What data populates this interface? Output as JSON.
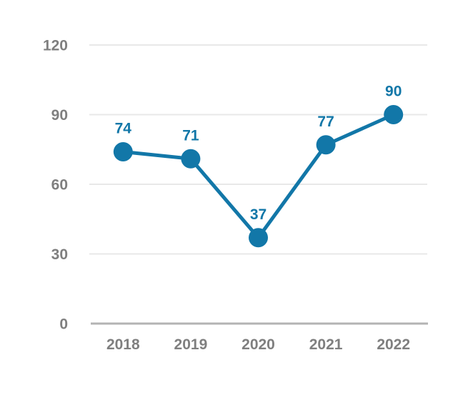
{
  "chart_data": {
    "type": "line",
    "title": "",
    "xlabel": "",
    "ylabel": "",
    "categories": [
      "2018",
      "2019",
      "2020",
      "2021",
      "2022"
    ],
    "values": [
      74,
      71,
      37,
      77,
      90
    ],
    "data_labels": [
      "74",
      "71",
      "37",
      "77",
      "90"
    ],
    "ylim": [
      0,
      120
    ],
    "yticks": [
      0,
      30,
      60,
      90,
      120
    ],
    "grid": true,
    "legend": false,
    "marker": "circle",
    "colors": {
      "series": "#1277a8",
      "tick_label": "#7f7f7f",
      "gridline": "#e8e8e8",
      "axis_line": "#b3b3b3",
      "background": "#ffffff"
    }
  }
}
